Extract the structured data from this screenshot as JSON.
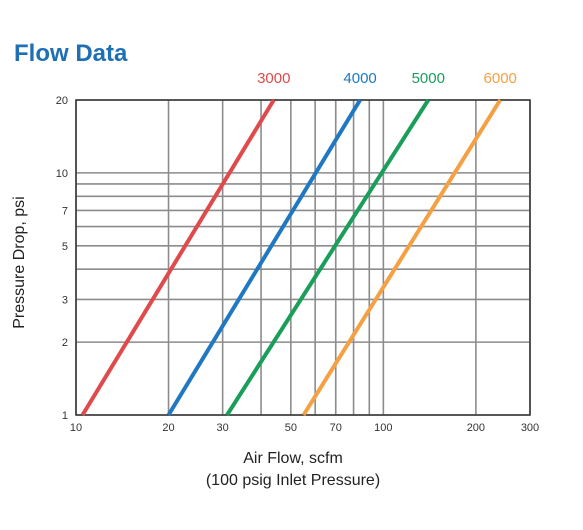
{
  "page_title": "Flow Data",
  "chart_data": {
    "type": "line",
    "title": "Flow Data",
    "xlabel": "Air Flow, scfm",
    "xlabel_sub": "(100 psig Inlet Pressure)",
    "ylabel": "Pressure Drop, psi",
    "x_scale": "log",
    "y_scale": "log",
    "xlim": [
      10,
      300
    ],
    "ylim": [
      1,
      20
    ],
    "x_ticks": [
      10,
      20,
      30,
      50,
      70,
      100,
      200,
      300
    ],
    "x_tick_labels": [
      "10",
      "20",
      "30",
      "50",
      "70",
      "100",
      "200",
      "300"
    ],
    "y_ticks": [
      1,
      2,
      3,
      5,
      7,
      10,
      20
    ],
    "y_tick_labels": [
      "1",
      "2",
      "3",
      "5",
      "7",
      "10",
      "20"
    ],
    "grid": true,
    "legend_position": "top",
    "series": [
      {
        "name": "3000",
        "color": "#e04a4a",
        "x": [
          10.5,
          44
        ],
        "y": [
          1,
          20
        ]
      },
      {
        "name": "4000",
        "color": "#1f78c1",
        "x": [
          20,
          84
        ],
        "y": [
          1,
          20
        ]
      },
      {
        "name": "5000",
        "color": "#1a9e5a",
        "x": [
          31,
          140
        ],
        "y": [
          1,
          20
        ]
      },
      {
        "name": "6000",
        "color": "#f5a043",
        "x": [
          55,
          240
        ],
        "y": [
          1,
          20
        ]
      }
    ]
  }
}
